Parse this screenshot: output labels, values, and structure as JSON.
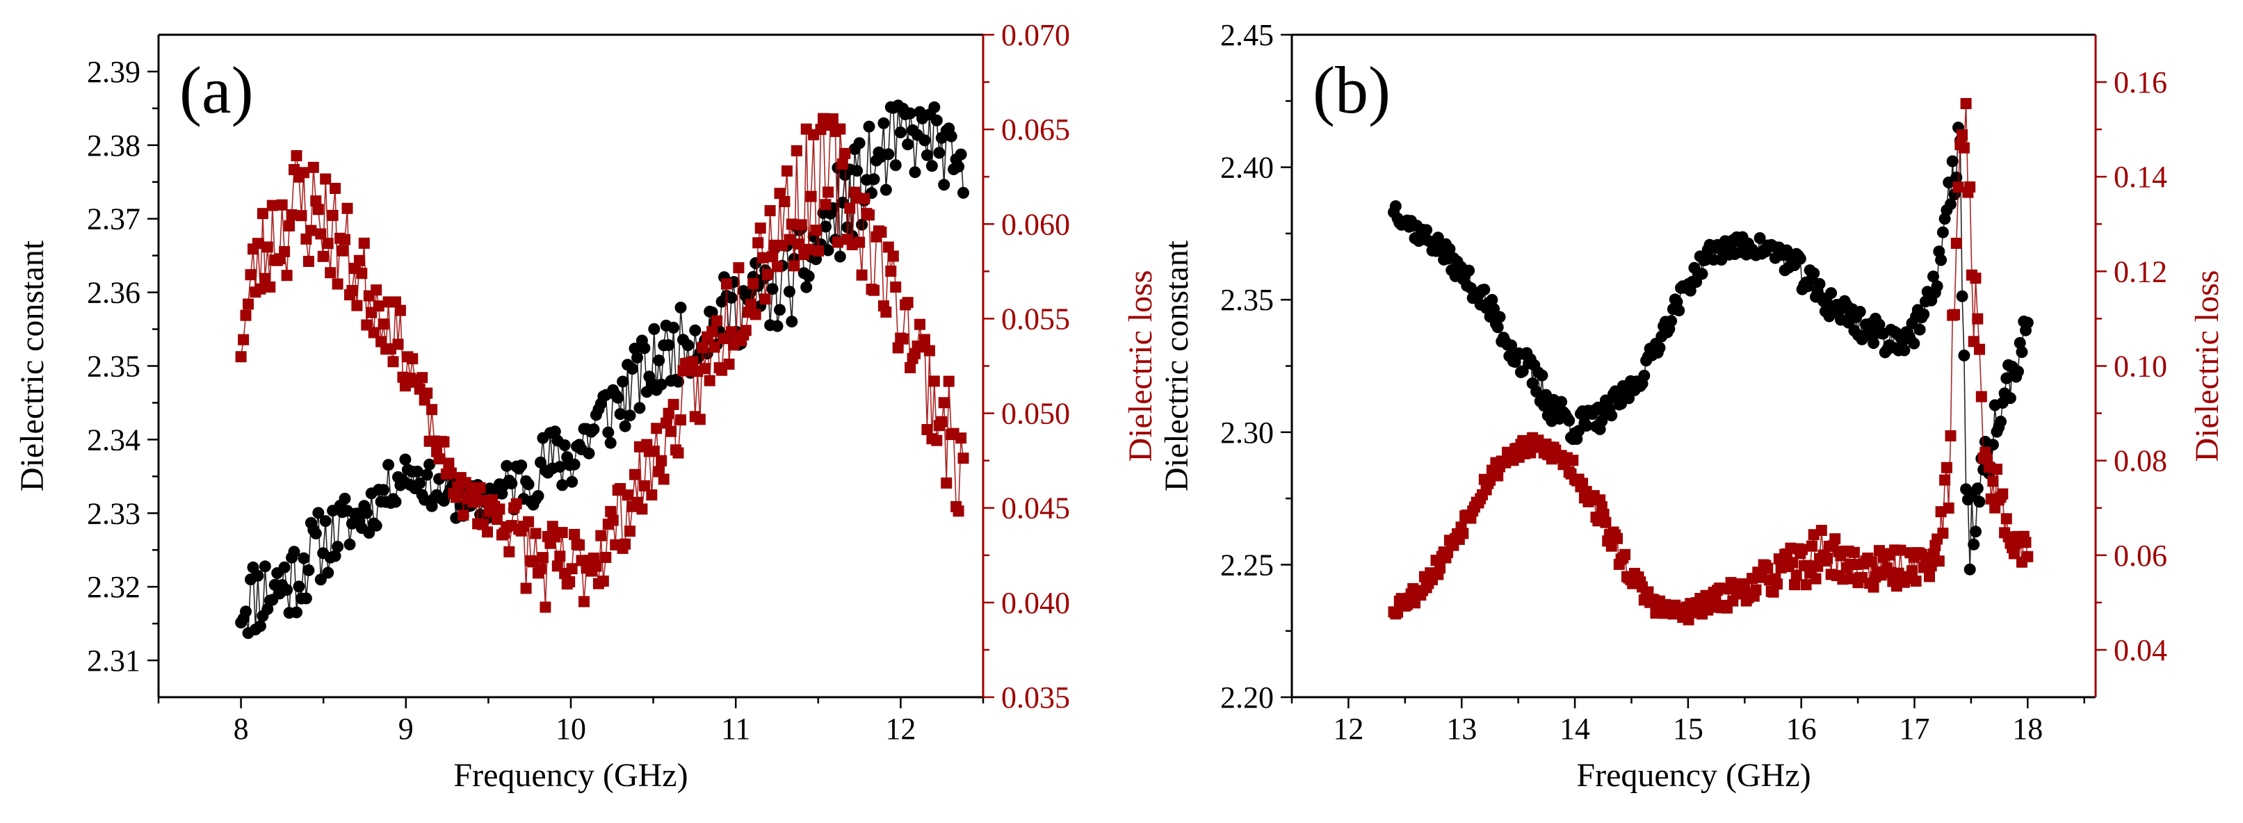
{
  "colors": {
    "dielectric_constant": "#000000",
    "dielectric_loss": "#a00000",
    "axes": "#000000"
  },
  "chart_data": [
    {
      "type": "scatter",
      "panel_label": "(a)",
      "xlabel": "Frequency (GHz)",
      "ylabel": "Dielectric constant",
      "y2label": "Dielectric loss",
      "xlim": [
        7.5,
        12.5
      ],
      "ylim": [
        2.305,
        2.395
      ],
      "y2lim": [
        0.035,
        0.07
      ],
      "x_ticks": [
        "8",
        "9",
        "10",
        "11",
        "12"
      ],
      "y_ticks": [
        "2.31",
        "2.32",
        "2.33",
        "2.34",
        "2.35",
        "2.36",
        "2.37",
        "2.38",
        "2.39"
      ],
      "y2_ticks": [
        "0.035",
        "0.040",
        "0.045",
        "0.050",
        "0.055",
        "0.060",
        "0.065",
        "0.070"
      ],
      "grid": false,
      "series": [
        {
          "name": "Dielectric constant",
          "axis": "left",
          "marker": "circle",
          "color": "#000000",
          "anchors": [
            [
              8.0,
              2.318
            ],
            [
              8.3,
              2.321
            ],
            [
              8.5,
              2.326
            ],
            [
              8.8,
              2.331
            ],
            [
              9.0,
              2.336
            ],
            [
              9.2,
              2.333
            ],
            [
              9.4,
              2.331
            ],
            [
              9.6,
              2.333
            ],
            [
              9.8,
              2.336
            ],
            [
              10.0,
              2.338
            ],
            [
              10.2,
              2.343
            ],
            [
              10.4,
              2.348
            ],
            [
              10.6,
              2.352
            ],
            [
              10.8,
              2.355
            ],
            [
              11.0,
              2.358
            ],
            [
              11.2,
              2.36
            ],
            [
              11.4,
              2.363
            ],
            [
              11.6,
              2.37
            ],
            [
              11.8,
              2.376
            ],
            [
              12.0,
              2.381
            ],
            [
              12.2,
              2.381
            ],
            [
              12.38,
              2.375
            ]
          ],
          "jitter": [
            0.0055,
            0.006,
            0.005,
            0.0035,
            0.003,
            0.0028,
            0.0028,
            0.004,
            0.0045,
            0.0055,
            0.0055,
            0.005,
            0.005,
            0.005,
            0.0055,
            0.006,
            0.0065,
            0.0065,
            0.0065,
            0.0055,
            0.005,
            0.004
          ],
          "count": 300,
          "seed": 11
        },
        {
          "name": "Dielectric loss",
          "axis": "right",
          "marker": "square",
          "color": "#a00000",
          "anchors": [
            [
              8.0,
              0.0535
            ],
            [
              8.08,
              0.0575
            ],
            [
              8.2,
              0.0595
            ],
            [
              8.35,
              0.061
            ],
            [
              8.5,
              0.0605
            ],
            [
              8.7,
              0.0575
            ],
            [
              8.9,
              0.055
            ],
            [
              9.05,
              0.052
            ],
            [
              9.2,
              0.048
            ],
            [
              9.35,
              0.0455
            ],
            [
              9.6,
              0.0445
            ],
            [
              9.8,
              0.042
            ],
            [
              10.0,
              0.0415
            ],
            [
              10.2,
              0.043
            ],
            [
              10.4,
              0.046
            ],
            [
              10.6,
              0.049
            ],
            [
              10.8,
              0.052
            ],
            [
              11.0,
              0.056
            ],
            [
              11.2,
              0.0595
            ],
            [
              11.4,
              0.0615
            ],
            [
              11.6,
              0.0625
            ],
            [
              11.75,
              0.0605
            ],
            [
              11.9,
              0.0575
            ],
            [
              12.05,
              0.0545
            ],
            [
              12.2,
              0.051
            ],
            [
              12.38,
              0.0465
            ]
          ],
          "jitter": [
            0.001,
            0.0025,
            0.003,
            0.0035,
            0.003,
            0.0025,
            0.002,
            0.0015,
            0.001,
            0.001,
            0.0015,
            0.0025,
            0.0025,
            0.002,
            0.002,
            0.002,
            0.0025,
            0.003,
            0.0035,
            0.0035,
            0.0035,
            0.003,
            0.0025,
            0.0025,
            0.003,
            0.003
          ],
          "count": 300,
          "seed": 23
        }
      ]
    },
    {
      "type": "scatter",
      "panel_label": "(b)",
      "xlabel": "Frequency (GHz)",
      "ylabel": "Dielectric constant",
      "y2label": "Dielectric loss",
      "xlim": [
        11.5,
        18.6
      ],
      "ylim": [
        2.2,
        2.45
      ],
      "y2lim": [
        0.03,
        0.17
      ],
      "x_ticks": [
        "12",
        "13",
        "14",
        "15",
        "16",
        "17",
        "18"
      ],
      "y_ticks": [
        "2.20",
        "2.25",
        "2.30",
        "2.35",
        "2.40",
        "2.45"
      ],
      "y2_ticks": [
        "0.04",
        "0.06",
        "0.08",
        "0.10",
        "0.12",
        "0.14",
        "0.16"
      ],
      "grid": false,
      "series": [
        {
          "name": "Dielectric constant",
          "axis": "left",
          "marker": "circle",
          "color": "#000000",
          "anchors": [
            [
              12.4,
              2.385
            ],
            [
              12.6,
              2.376
            ],
            [
              12.8,
              2.37
            ],
            [
              13.0,
              2.36
            ],
            [
              13.2,
              2.35
            ],
            [
              13.4,
              2.335
            ],
            [
              13.6,
              2.322
            ],
            [
              13.8,
              2.31
            ],
            [
              14.0,
              2.302
            ],
            [
              14.2,
              2.305
            ],
            [
              14.4,
              2.312
            ],
            [
              14.6,
              2.322
            ],
            [
              14.8,
              2.34
            ],
            [
              15.0,
              2.356
            ],
            [
              15.2,
              2.368
            ],
            [
              15.4,
              2.37
            ],
            [
              15.6,
              2.37
            ],
            [
              15.8,
              2.368
            ],
            [
              16.0,
              2.36
            ],
            [
              16.2,
              2.35
            ],
            [
              16.4,
              2.345
            ],
            [
              16.6,
              2.338
            ],
            [
              16.8,
              2.335
            ],
            [
              17.0,
              2.338
            ],
            [
              17.15,
              2.35
            ],
            [
              17.3,
              2.385
            ],
            [
              17.4,
              2.41
            ],
            [
              17.47,
              2.26
            ],
            [
              17.55,
              2.27
            ],
            [
              17.7,
              2.3
            ],
            [
              17.85,
              2.32
            ],
            [
              18.0,
              2.34
            ]
          ],
          "jitter": [
            0.004,
            0.004,
            0.004,
            0.004,
            0.005,
            0.006,
            0.007,
            0.007,
            0.006,
            0.005,
            0.005,
            0.004,
            0.004,
            0.004,
            0.004,
            0.004,
            0.004,
            0.005,
            0.006,
            0.006,
            0.006,
            0.006,
            0.006,
            0.006,
            0.006,
            0.01,
            0.012,
            0.02,
            0.015,
            0.01,
            0.008,
            0.006
          ],
          "count": 330,
          "seed": 37
        },
        {
          "name": "Dielectric loss",
          "axis": "right",
          "marker": "square",
          "color": "#a00000",
          "anchors": [
            [
              12.4,
              0.049
            ],
            [
              12.6,
              0.052
            ],
            [
              12.8,
              0.058
            ],
            [
              13.0,
              0.066
            ],
            [
              13.2,
              0.075
            ],
            [
              13.4,
              0.081
            ],
            [
              13.6,
              0.083
            ],
            [
              13.8,
              0.082
            ],
            [
              14.0,
              0.078
            ],
            [
              14.2,
              0.07
            ],
            [
              14.4,
              0.06
            ],
            [
              14.6,
              0.052
            ],
            [
              14.8,
              0.048
            ],
            [
              15.0,
              0.048
            ],
            [
              15.2,
              0.05
            ],
            [
              15.4,
              0.052
            ],
            [
              15.6,
              0.054
            ],
            [
              15.8,
              0.056
            ],
            [
              16.0,
              0.058
            ],
            [
              16.2,
              0.061
            ],
            [
              16.4,
              0.058
            ],
            [
              16.6,
              0.057
            ],
            [
              16.8,
              0.057
            ],
            [
              17.0,
              0.058
            ],
            [
              17.2,
              0.06
            ],
            [
              17.3,
              0.075
            ],
            [
              17.38,
              0.135
            ],
            [
              17.45,
              0.155
            ],
            [
              17.52,
              0.12
            ],
            [
              17.6,
              0.085
            ],
            [
              17.7,
              0.075
            ],
            [
              17.85,
              0.065
            ],
            [
              18.0,
              0.06
            ]
          ],
          "jitter": [
            0.002,
            0.002,
            0.002,
            0.002,
            0.002,
            0.002,
            0.002,
            0.002,
            0.003,
            0.003,
            0.003,
            0.002,
            0.002,
            0.002,
            0.002,
            0.003,
            0.003,
            0.004,
            0.005,
            0.005,
            0.004,
            0.004,
            0.004,
            0.004,
            0.004,
            0.008,
            0.012,
            0.005,
            0.015,
            0.01,
            0.006,
            0.004,
            0.003
          ],
          "count": 330,
          "seed": 53
        }
      ]
    }
  ]
}
